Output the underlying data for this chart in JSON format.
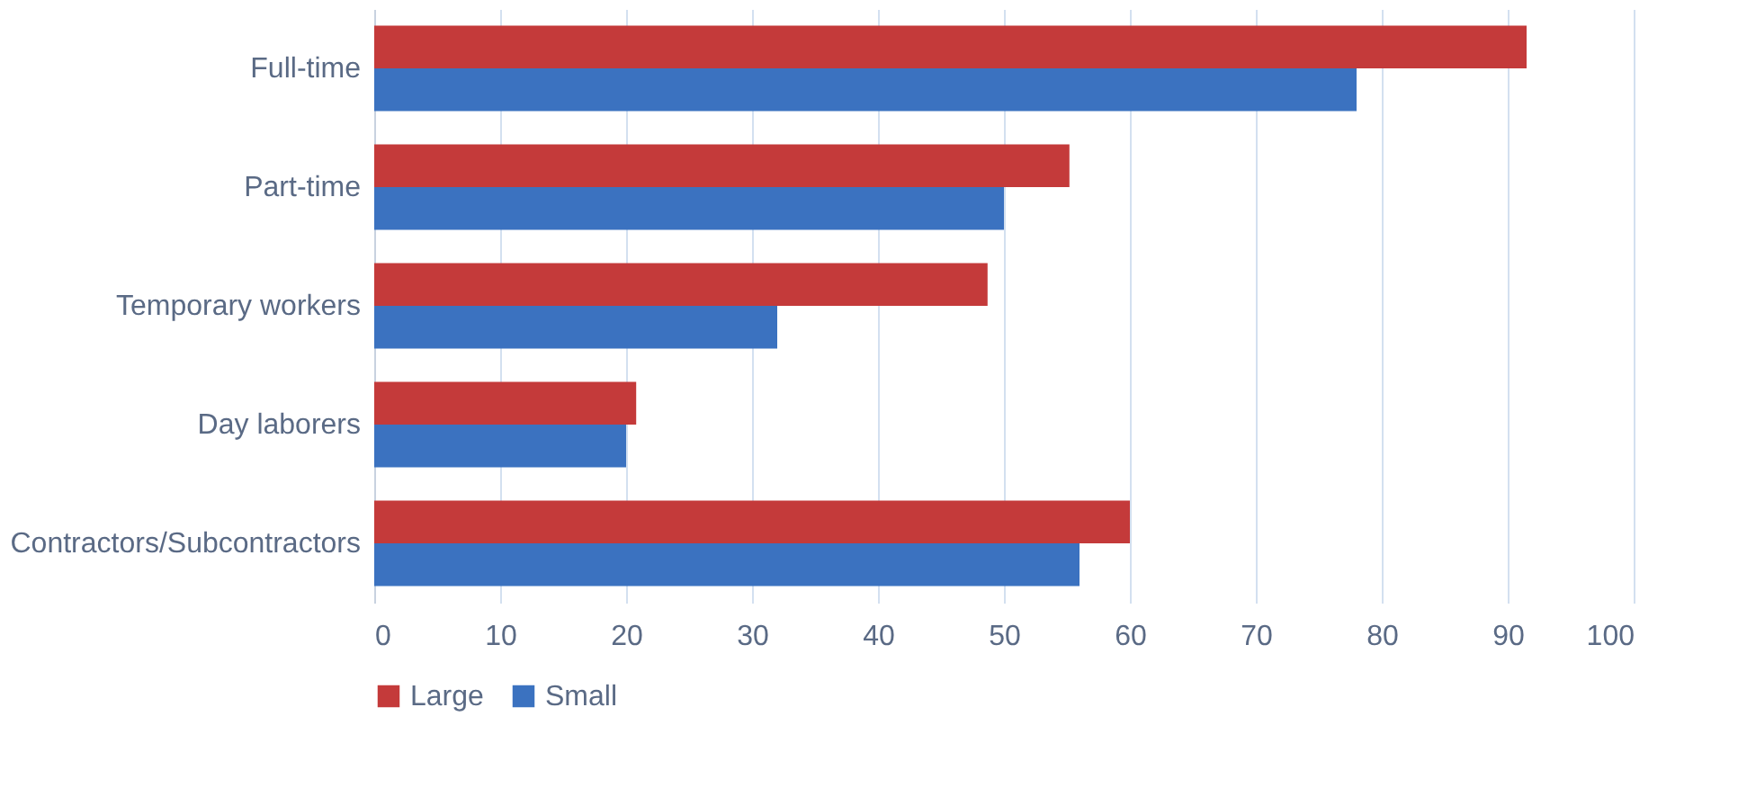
{
  "chart_data": {
    "type": "bar",
    "orientation": "horizontal",
    "categories": [
      "Full-time",
      "Part-time",
      "Temporary workers",
      "Day laborers",
      "Contractors/Subcontractors"
    ],
    "series": [
      {
        "name": "Large",
        "color": "#c43a3a",
        "values": [
          91.5,
          55.2,
          48.7,
          20.8,
          60
        ]
      },
      {
        "name": "Small",
        "color": "#3b72c0",
        "values": [
          78,
          50,
          32,
          20,
          56
        ]
      }
    ],
    "xlim": [
      0,
      100
    ],
    "xticks": [
      0,
      10,
      20,
      30,
      40,
      50,
      60,
      70,
      80,
      90,
      100
    ],
    "grid": "x",
    "legend": "bottom"
  }
}
